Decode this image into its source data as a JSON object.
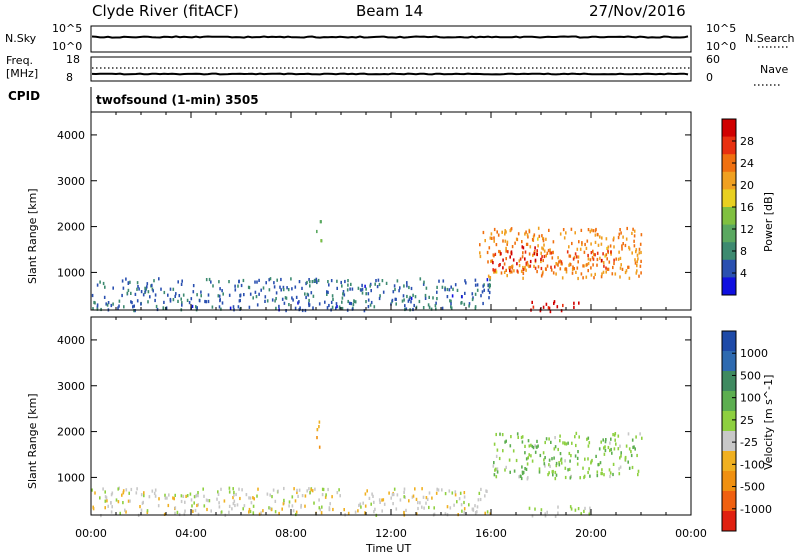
{
  "header": {
    "station": "Clyde River (fitACF)",
    "beam": "Beam 14",
    "date": "27/Nov/2016"
  },
  "status_panel": {
    "nsky_label": "N.Sky",
    "nsky_ticks": [
      "10^5",
      "10^0"
    ],
    "nsearch_label": "N.Search",
    "nsearch_ticks": [
      "10^5",
      "10^0"
    ],
    "freq_label": "Freq.",
    "freq_unit": "[MHz]",
    "freq_ticks": [
      "18",
      "8"
    ],
    "nave_label": "Nave",
    "nave_ticks": [
      "60",
      "0"
    ],
    "cpid_label": "CPID",
    "cpid_value": "twofsound (1-min) 3505"
  },
  "x_axis": {
    "tick_labels": [
      "00:00",
      "04:00",
      "08:00",
      "12:00",
      "16:00",
      "20:00",
      "00:00"
    ],
    "label": "Time UT"
  },
  "power_panel": {
    "ylabel": "Slant Range [km]",
    "ytick_labels": [
      "1000",
      "2000",
      "3000",
      "4000"
    ],
    "colorbar_label": "Power [dB]",
    "colorbar_ticks": [
      "4",
      "8",
      "12",
      "16",
      "20",
      "24",
      "28"
    ],
    "colors": [
      "#1010e0",
      "#2a50b0",
      "#3d8a70",
      "#5aa860",
      "#80c040",
      "#e8d020",
      "#f0a020",
      "#f07010",
      "#e83010",
      "#d00000"
    ]
  },
  "velocity_panel": {
    "ylabel": "Slant Range [km]",
    "ytick_labels": [
      "1000",
      "2000",
      "3000",
      "4000"
    ],
    "colorbar_label": "Velocity [m s^-1]",
    "colorbar_ticks": [
      "1000",
      "500",
      "100",
      "25",
      "-25",
      "-100",
      "-500",
      "-1000"
    ],
    "colors": [
      "#1e4aa8",
      "#2e6ab0",
      "#3f8a60",
      "#5cae50",
      "#8ed040",
      "#c8c8c8",
      "#f0b020",
      "#f09010",
      "#f06010",
      "#e02010"
    ]
  },
  "chart_data": [
    {
      "type": "heatmap",
      "title": "Power",
      "xlabel": "Time UT",
      "ylabel": "Slant Range [km]",
      "xlim": [
        0,
        24
      ],
      "ylim": [
        180,
        4500
      ],
      "colorbar": {
        "label": "Power [dB]",
        "range": [
          0,
          32
        ]
      },
      "regions": [
        {
          "t0": 0.0,
          "t1": 16.0,
          "r0": 200,
          "r1": 900,
          "value": 6
        },
        {
          "t0": 15.5,
          "t1": 22.0,
          "r0": 900,
          "r1": 2000,
          "value": 22
        },
        {
          "t0": 16.0,
          "t1": 18.0,
          "r0": 1000,
          "r1": 1600,
          "value": 28
        },
        {
          "t0": 18.0,
          "t1": 21.0,
          "r0": 1100,
          "r1": 1500,
          "value": 26
        },
        {
          "t0": 17.5,
          "t1": 20.0,
          "r0": 180,
          "r1": 400,
          "value": 30
        },
        {
          "t0": 9.0,
          "t1": 9.2,
          "r0": 1600,
          "r1": 2300,
          "value": 14
        }
      ]
    },
    {
      "type": "heatmap",
      "title": "Velocity",
      "xlabel": "Time UT",
      "ylabel": "Slant Range [km]",
      "xlim": [
        0,
        24
      ],
      "ylim": [
        180,
        4500
      ],
      "colorbar": {
        "label": "Velocity [m s^-1]",
        "range": [
          -1000,
          1000
        ]
      },
      "regions": [
        {
          "t0": 0.0,
          "t1": 16.0,
          "r0": 200,
          "r1": 800,
          "value": -100
        },
        {
          "t0": 16.0,
          "t1": 22.0,
          "r0": 1000,
          "r1": 2000,
          "value": 150
        },
        {
          "t0": 9.0,
          "t1": 9.2,
          "r0": 1600,
          "r1": 2300,
          "value": -300
        },
        {
          "t0": 17.5,
          "t1": 20.0,
          "r0": 180,
          "r1": 400,
          "value": 0
        }
      ]
    }
  ]
}
